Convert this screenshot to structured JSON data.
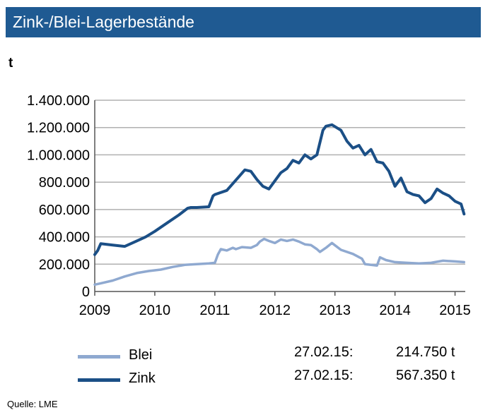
{
  "title": "Zink-/Blei-Lagerbestände",
  "unit_label": "t",
  "colors": {
    "title_bg": "#1f5a92",
    "blei": "#8fa9d0",
    "zink": "#1b4f86",
    "grid": "#b0b0b0"
  },
  "legend": [
    {
      "name": "Blei",
      "date": "27.02.15:",
      "value": "214.750 t"
    },
    {
      "name": "Zink",
      "date": "27.02.15:",
      "value": "567.350 t"
    }
  ],
  "source": "Quelle:  LME",
  "chart_data": {
    "type": "line",
    "title": "Zink-/Blei-Lagerbestände",
    "ylabel": "t",
    "xlabel": "",
    "xlim": [
      2009,
      2015.17
    ],
    "ylim": [
      0,
      1400000
    ],
    "x_ticks": [
      2009,
      2010,
      2011,
      2012,
      2013,
      2014,
      2015
    ],
    "x_tick_labels": [
      "2009",
      "2010",
      "2011",
      "2012",
      "2013",
      "2014",
      "2015"
    ],
    "y_ticks": [
      0,
      200000,
      400000,
      600000,
      800000,
      1000000,
      1200000,
      1400000
    ],
    "y_tick_labels": [
      "0",
      "200.000",
      "400.000",
      "600.000",
      "800.000",
      "1.000.000",
      "1.200.000",
      "1.400.000"
    ],
    "grid": "horizontal",
    "legend_position": "bottom-left",
    "series": [
      {
        "name": "Blei",
        "x": [
          2009.0,
          2009.1,
          2009.3,
          2009.5,
          2009.7,
          2009.9,
          2010.1,
          2010.3,
          2010.5,
          2010.7,
          2010.9,
          2011.0,
          2011.05,
          2011.1,
          2011.2,
          2011.3,
          2011.35,
          2011.45,
          2011.6,
          2011.7,
          2011.75,
          2011.82,
          2011.9,
          2012.0,
          2012.1,
          2012.2,
          2012.3,
          2012.4,
          2012.5,
          2012.6,
          2012.7,
          2012.75,
          2012.85,
          2012.95,
          2013.1,
          2013.3,
          2013.45,
          2013.5,
          2013.6,
          2013.7,
          2013.75,
          2013.85,
          2014.0,
          2014.2,
          2014.4,
          2014.6,
          2014.8,
          2015.0,
          2015.15
        ],
        "y": [
          50000,
          60000,
          80000,
          110000,
          135000,
          150000,
          160000,
          180000,
          195000,
          200000,
          205000,
          210000,
          270000,
          310000,
          300000,
          320000,
          310000,
          325000,
          320000,
          340000,
          365000,
          385000,
          370000,
          355000,
          380000,
          370000,
          380000,
          365000,
          345000,
          340000,
          310000,
          290000,
          320000,
          355000,
          305000,
          275000,
          240000,
          200000,
          195000,
          190000,
          250000,
          230000,
          215000,
          210000,
          205000,
          210000,
          225000,
          220000,
          214750
        ]
      },
      {
        "name": "Zink",
        "x": [
          2009.0,
          2009.05,
          2009.1,
          2009.3,
          2009.5,
          2009.7,
          2009.85,
          2010.0,
          2010.2,
          2010.4,
          2010.55,
          2010.6,
          2010.7,
          2010.9,
          2010.97,
          2011.0,
          2011.2,
          2011.4,
          2011.5,
          2011.6,
          2011.7,
          2011.8,
          2011.9,
          2012.0,
          2012.1,
          2012.2,
          2012.3,
          2012.4,
          2012.5,
          2012.6,
          2012.7,
          2012.8,
          2012.85,
          2012.95,
          2013.1,
          2013.2,
          2013.3,
          2013.4,
          2013.5,
          2013.6,
          2013.7,
          2013.8,
          2013.9,
          2014.0,
          2014.1,
          2014.2,
          2014.3,
          2014.4,
          2014.5,
          2014.6,
          2014.7,
          2014.8,
          2014.9,
          2015.0,
          2015.1,
          2015.15
        ],
        "y": [
          270000,
          300000,
          350000,
          340000,
          330000,
          370000,
          400000,
          440000,
          500000,
          560000,
          610000,
          615000,
          615000,
          620000,
          700000,
          710000,
          740000,
          840000,
          890000,
          880000,
          820000,
          770000,
          750000,
          810000,
          870000,
          900000,
          960000,
          940000,
          1000000,
          970000,
          1000000,
          1180000,
          1210000,
          1220000,
          1180000,
          1100000,
          1050000,
          1070000,
          1000000,
          1040000,
          950000,
          940000,
          880000,
          770000,
          830000,
          730000,
          710000,
          700000,
          650000,
          680000,
          750000,
          720000,
          700000,
          660000,
          640000,
          567350
        ]
      }
    ]
  }
}
